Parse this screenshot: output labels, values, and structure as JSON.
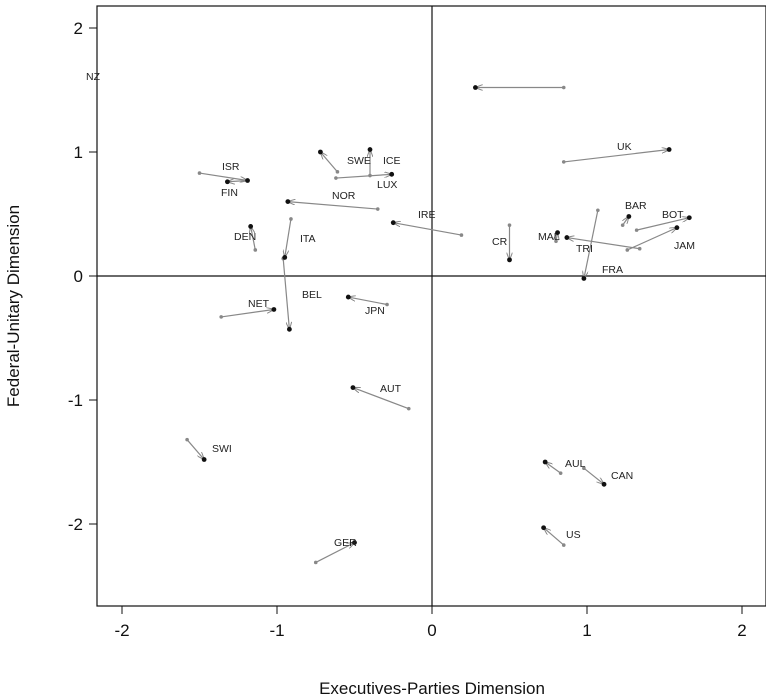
{
  "chart_data": {
    "type": "scatter",
    "title": "",
    "xlabel": "Executives-Parties Dimension",
    "ylabel": "Federal-Unitary Dimension",
    "xlim": [
      -2.2,
      2.2
    ],
    "ylim": [
      -2.67,
      2.2
    ],
    "xticks": [
      "-2",
      "-1",
      "0",
      "1",
      "2"
    ],
    "yticks": [
      "2",
      "1",
      "0",
      "-1",
      "-2"
    ],
    "xtick_values": [
      -2,
      -1,
      0,
      1,
      2
    ],
    "ytick_values": [
      2,
      1,
      0,
      -1,
      -2
    ],
    "reference_lines": {
      "x": 0,
      "y": 0
    },
    "grid": false,
    "legend": "none",
    "colors": {
      "point": "#111111",
      "arrow": "#888888"
    },
    "countries": [
      {
        "label": "NZ",
        "from": [
          0.85,
          1.52
        ],
        "to": [
          0.28,
          1.52
        ]
      },
      {
        "label": "UK",
        "from": [
          0.85,
          0.92
        ],
        "to": [
          1.53,
          1.02
        ]
      },
      {
        "label": "ISR",
        "from": [
          -1.5,
          0.83
        ],
        "to": [
          -1.19,
          0.77
        ]
      },
      {
        "label": "FIN",
        "from": [
          -1.19,
          0.77
        ],
        "to": [
          -1.32,
          0.76
        ]
      },
      {
        "label": "SWE",
        "from": [
          -0.61,
          0.84
        ],
        "to": [
          -0.72,
          1.0
        ]
      },
      {
        "label": "ICE",
        "from": [
          -0.4,
          0.81
        ],
        "to": [
          -0.4,
          1.02
        ]
      },
      {
        "label": "LUX",
        "from": [
          -0.62,
          0.79
        ],
        "to": [
          -0.26,
          0.82
        ]
      },
      {
        "label": "NOR",
        "from": [
          -0.35,
          0.54
        ],
        "to": [
          -0.93,
          0.6
        ]
      },
      {
        "label": "IRE",
        "from": [
          0.19,
          0.33
        ],
        "to": [
          -0.25,
          0.43
        ]
      },
      {
        "label": "DEN",
        "from": [
          -1.14,
          0.21
        ],
        "to": [
          -1.17,
          0.4
        ]
      },
      {
        "label": "ITA",
        "from": [
          -0.91,
          0.46
        ],
        "to": [
          -0.95,
          0.15
        ]
      },
      {
        "label": "BEL",
        "from": [
          -0.96,
          0.14
        ],
        "to": [
          -0.92,
          -0.43
        ]
      },
      {
        "label": "CR",
        "from": [
          0.5,
          0.41
        ],
        "to": [
          0.5,
          0.13
        ]
      },
      {
        "label": "MAL",
        "from": [
          0.8,
          0.28
        ],
        "to": [
          0.81,
          0.35
        ]
      },
      {
        "label": "TRI",
        "from": [
          1.34,
          0.22
        ],
        "to": [
          0.87,
          0.31
        ]
      },
      {
        "label": "FRA",
        "from": [
          1.07,
          0.53
        ],
        "to": [
          0.98,
          -0.02
        ]
      },
      {
        "label": "BAR",
        "from": [
          1.23,
          0.41
        ],
        "to": [
          1.27,
          0.48
        ]
      },
      {
        "label": "BOT",
        "from": [
          1.32,
          0.37
        ],
        "to": [
          1.66,
          0.47
        ]
      },
      {
        "label": "JAM",
        "from": [
          1.26,
          0.21
        ],
        "to": [
          1.58,
          0.39
        ]
      },
      {
        "label": "NET",
        "from": [
          -1.36,
          -0.33
        ],
        "to": [
          -1.02,
          -0.27
        ]
      },
      {
        "label": "JPN",
        "from": [
          -0.29,
          -0.23
        ],
        "to": [
          -0.54,
          -0.17
        ]
      },
      {
        "label": "AUT",
        "from": [
          -0.15,
          -1.07
        ],
        "to": [
          -0.51,
          -0.9
        ]
      },
      {
        "label": "SWI",
        "from": [
          -1.58,
          -1.32
        ],
        "to": [
          -1.47,
          -1.48
        ]
      },
      {
        "label": "GER",
        "from": [
          -0.75,
          -2.31
        ],
        "to": [
          -0.5,
          -2.15
        ]
      },
      {
        "label": "AUL",
        "from": [
          0.83,
          -1.59
        ],
        "to": [
          0.73,
          -1.5
        ]
      },
      {
        "label": "CAN",
        "from": [
          0.98,
          -1.55
        ],
        "to": [
          1.11,
          -1.68
        ]
      },
      {
        "label": "US",
        "from": [
          0.85,
          -2.17
        ],
        "to": [
          0.72,
          -2.03
        ]
      }
    ]
  }
}
